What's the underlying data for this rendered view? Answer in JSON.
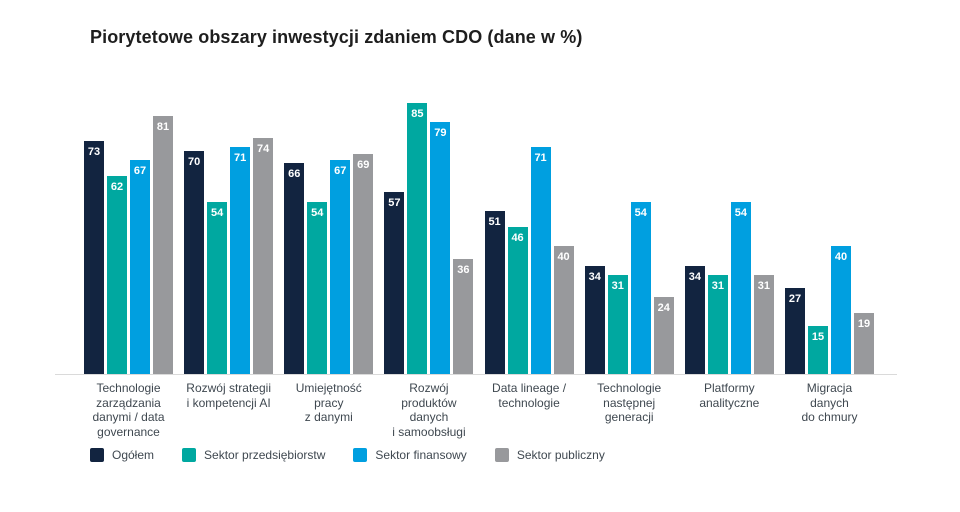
{
  "title": "Piorytetowe obszary inwestycji zdaniem CDO (dane w %)",
  "chart_data": {
    "type": "bar",
    "title": "Piorytetowe obszary inwestycji zdaniem CDO (dane w %)",
    "unit": "%",
    "value_labels": "inside bar top, white",
    "legend_position": "bottom",
    "grid": false,
    "ylim": [
      0,
      89
    ],
    "categories": [
      "Technologie\nzarządzania\ndanymi / data\ngovernance",
      "Rozwój strategii\ni kompetencji AI",
      "Umiejętność\npracy\nz danymi",
      "Rozwój\nproduktów\ndanych\ni samoobsługi",
      "Data lineage /\ntechnologie",
      "Technologie\nnastępnej\ngeneracji",
      "Platformy\nanalityczne",
      "Migracja\ndanych\ndo chmury"
    ],
    "series": [
      {
        "name": "Ogółem",
        "color": "#122440",
        "values": [
          73,
          70,
          66,
          57,
          51,
          34,
          34,
          27
        ]
      },
      {
        "name": "Sektor przedsiębiorstw",
        "color": "#00a8a0",
        "values": [
          62,
          54,
          54,
          85,
          46,
          31,
          31,
          15
        ]
      },
      {
        "name": "Sektor finansowy",
        "color": "#009fe0",
        "values": [
          67,
          71,
          67,
          79,
          71,
          54,
          54,
          40
        ]
      },
      {
        "name": "Sektor publiczny",
        "color": "#98999c",
        "values": [
          81,
          74,
          69,
          36,
          40,
          24,
          31,
          19
        ]
      }
    ]
  }
}
